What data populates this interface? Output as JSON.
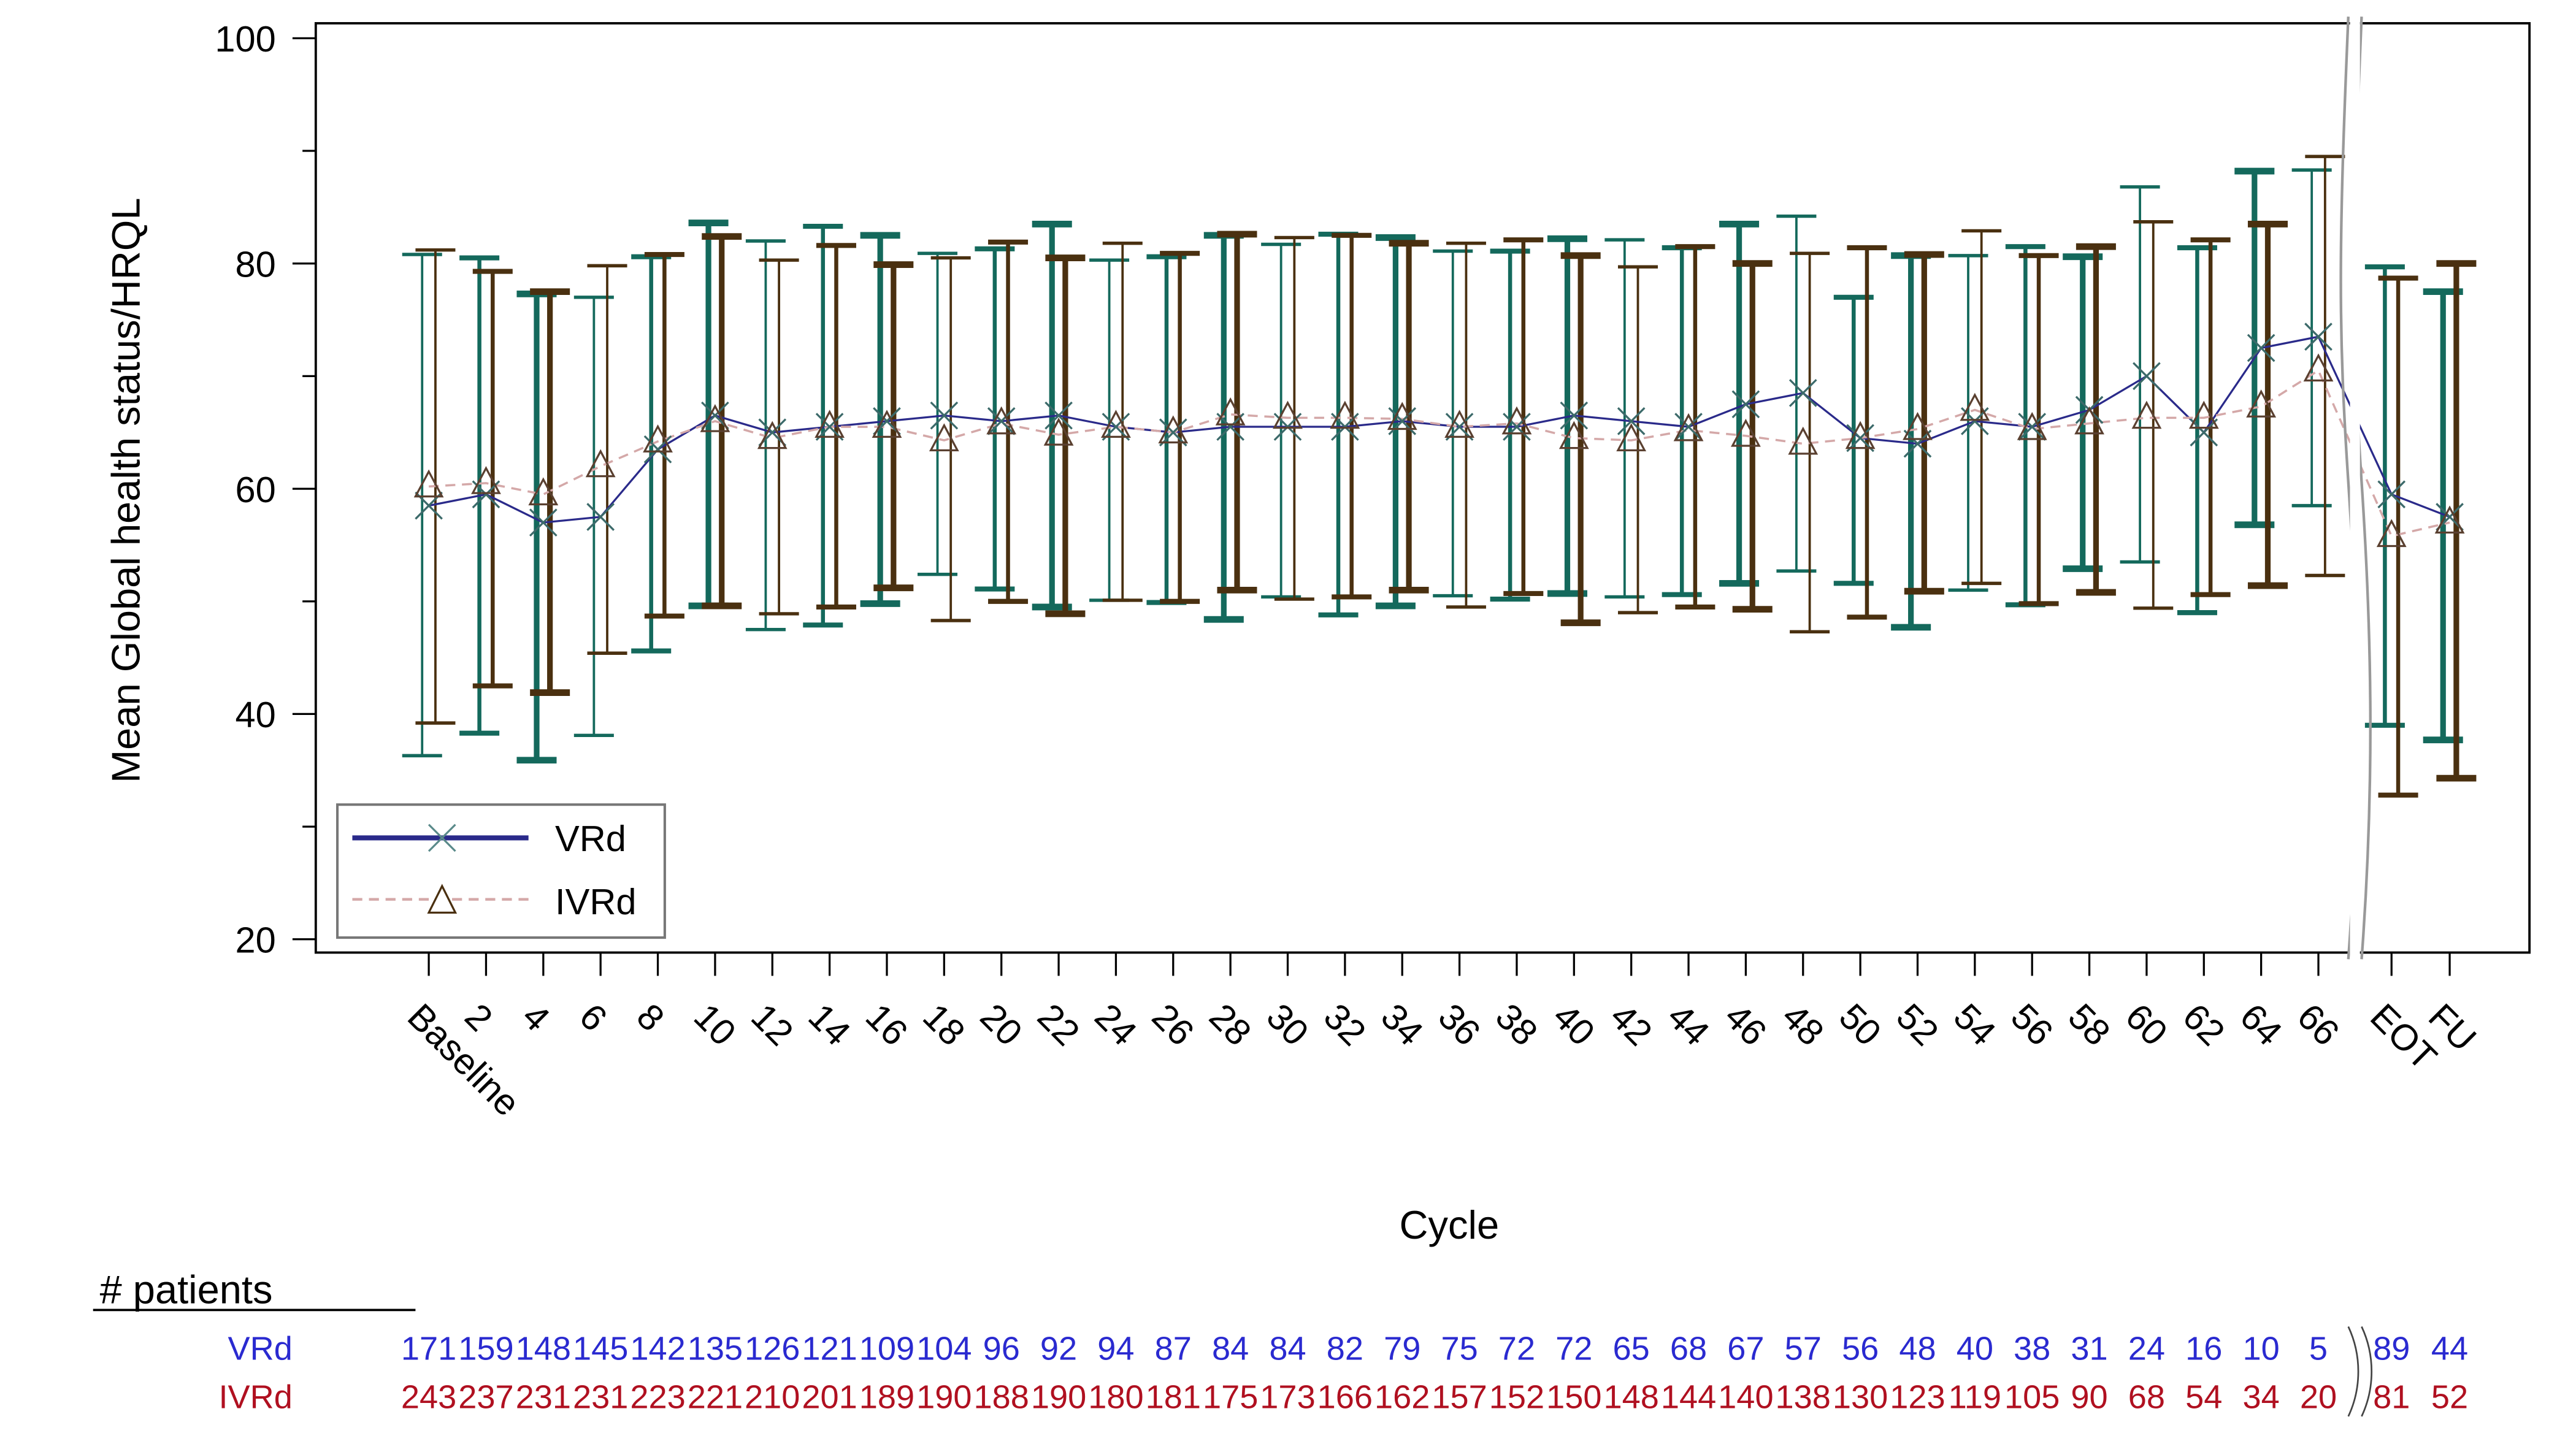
{
  "chart_data": {
    "type": "line",
    "title": "",
    "xlabel": "Cycle",
    "ylabel": "Mean Global health status/HRQL",
    "ylim": [
      20,
      100
    ],
    "yticks": [
      20,
      40,
      60,
      80,
      100
    ],
    "grid": false,
    "legend_position": "lower-left inside",
    "axis_break_after": "66",
    "categories": [
      "Baseline",
      "2",
      "4",
      "6",
      "8",
      "10",
      "12",
      "14",
      "16",
      "18",
      "20",
      "22",
      "24",
      "26",
      "28",
      "30",
      "32",
      "34",
      "36",
      "38",
      "40",
      "42",
      "44",
      "46",
      "48",
      "50",
      "52",
      "54",
      "56",
      "58",
      "60",
      "62",
      "64",
      "66",
      "EOT",
      "FU"
    ],
    "series": [
      {
        "name": "VRd",
        "line_style": "solid",
        "marker": "x",
        "line_color": "#2a2a8a",
        "errorbar_color": "#14695c",
        "values": [
          58.5,
          59.5,
          57,
          57.5,
          63.5,
          66.5,
          65,
          65.5,
          66,
          66.5,
          66,
          66.5,
          65.5,
          65,
          65.5,
          65.5,
          65.5,
          66,
          65.5,
          65.5,
          66.5,
          66,
          65.5,
          67.5,
          68.5,
          64.5,
          64,
          66,
          65.5,
          67,
          70,
          65,
          72.5,
          73.5,
          59.5,
          57.5
        ],
        "upper": [
          80.8,
          80.5,
          77.3,
          77,
          80.6,
          83.6,
          82,
          83.3,
          82.5,
          80.9,
          81.3,
          83.5,
          80.3,
          80.6,
          82.5,
          81.7,
          82.6,
          82.3,
          81.1,
          81.1,
          82.2,
          82.1,
          81.4,
          83.5,
          84.2,
          77,
          80.7,
          80.7,
          81.5,
          80.6,
          86.8,
          81.4,
          88.2,
          88.3,
          79.7,
          77.5
        ],
        "lower": [
          36.3,
          38.3,
          35.9,
          38.1,
          45.6,
          49.6,
          47.5,
          47.9,
          49.8,
          52.4,
          51.1,
          49.5,
          50.1,
          49.9,
          48.4,
          50.4,
          48.8,
          49.6,
          50.5,
          50.2,
          50.7,
          50.4,
          50.6,
          51.6,
          52.7,
          51.6,
          47.7,
          51,
          49.7,
          52.9,
          53.5,
          49,
          56.8,
          58.5,
          39,
          37.7
        ]
      },
      {
        "name": "IVRd",
        "line_style": "dashed",
        "marker": "triangle",
        "line_color": "#d4a8a8",
        "errorbar_color": "#4a3010",
        "values": [
          60.2,
          60.5,
          59.5,
          62,
          64.2,
          66,
          64.5,
          65.5,
          65.5,
          64.3,
          65.8,
          64.8,
          65.5,
          65,
          66.6,
          66.3,
          66.3,
          66.2,
          65.5,
          65.8,
          64.5,
          64.3,
          65.2,
          64.7,
          64,
          64.5,
          65.3,
          67,
          65.3,
          65.8,
          66.3,
          66.3,
          67.3,
          70.5,
          55.8,
          57
        ],
        "upper": [
          81.2,
          79.3,
          77.5,
          79.8,
          80.8,
          82.4,
          80.3,
          81.6,
          79.9,
          80.5,
          81.9,
          80.5,
          81.8,
          80.9,
          82.6,
          82.3,
          82.5,
          81.8,
          81.8,
          82.1,
          80.7,
          79.7,
          81.5,
          80,
          80.9,
          81.4,
          80.8,
          82.9,
          80.7,
          81.5,
          83.7,
          82.1,
          83.5,
          89.5,
          78.7,
          80
        ],
        "lower": [
          39.2,
          42.5,
          41.9,
          45.4,
          48.7,
          49.6,
          48.9,
          49.5,
          51.2,
          48.3,
          50,
          48.9,
          50.1,
          50,
          51,
          50.2,
          50.4,
          51,
          49.5,
          50.7,
          48.1,
          49,
          49.5,
          49.3,
          47.3,
          48.6,
          50.9,
          51.6,
          49.8,
          50.8,
          49.4,
          50.6,
          51.4,
          52.3,
          32.8,
          34.3
        ]
      }
    ]
  },
  "patients_table": {
    "header": "# patients",
    "rows": [
      {
        "label": "VRd",
        "color": "#2a2ad0",
        "values": [
          "171",
          "159",
          "148",
          "145",
          "142",
          "135",
          "126",
          "121",
          "109",
          "104",
          "96",
          "92",
          "94",
          "87",
          "84",
          "84",
          "82",
          "79",
          "75",
          "72",
          "72",
          "65",
          "68",
          "67",
          "57",
          "56",
          "48",
          "40",
          "38",
          "31",
          "24",
          "16",
          "10",
          "5",
          "89",
          "44"
        ]
      },
      {
        "label": "IVRd",
        "color": "#b01020",
        "values": [
          "243",
          "237",
          "231",
          "231",
          "223",
          "221",
          "210",
          "201",
          "189",
          "190",
          "188",
          "190",
          "180",
          "181",
          "175",
          "173",
          "166",
          "162",
          "157",
          "152",
          "150",
          "148",
          "144",
          "140",
          "138",
          "130",
          "123",
          "119",
          "105",
          "90",
          "68",
          "54",
          "34",
          "20",
          "81",
          "52"
        ]
      }
    ]
  },
  "legend": {
    "items": [
      {
        "label": "VRd",
        "icon": "x-marker-solid-line"
      },
      {
        "label": "IVRd",
        "icon": "triangle-marker-dashed-line"
      }
    ]
  }
}
